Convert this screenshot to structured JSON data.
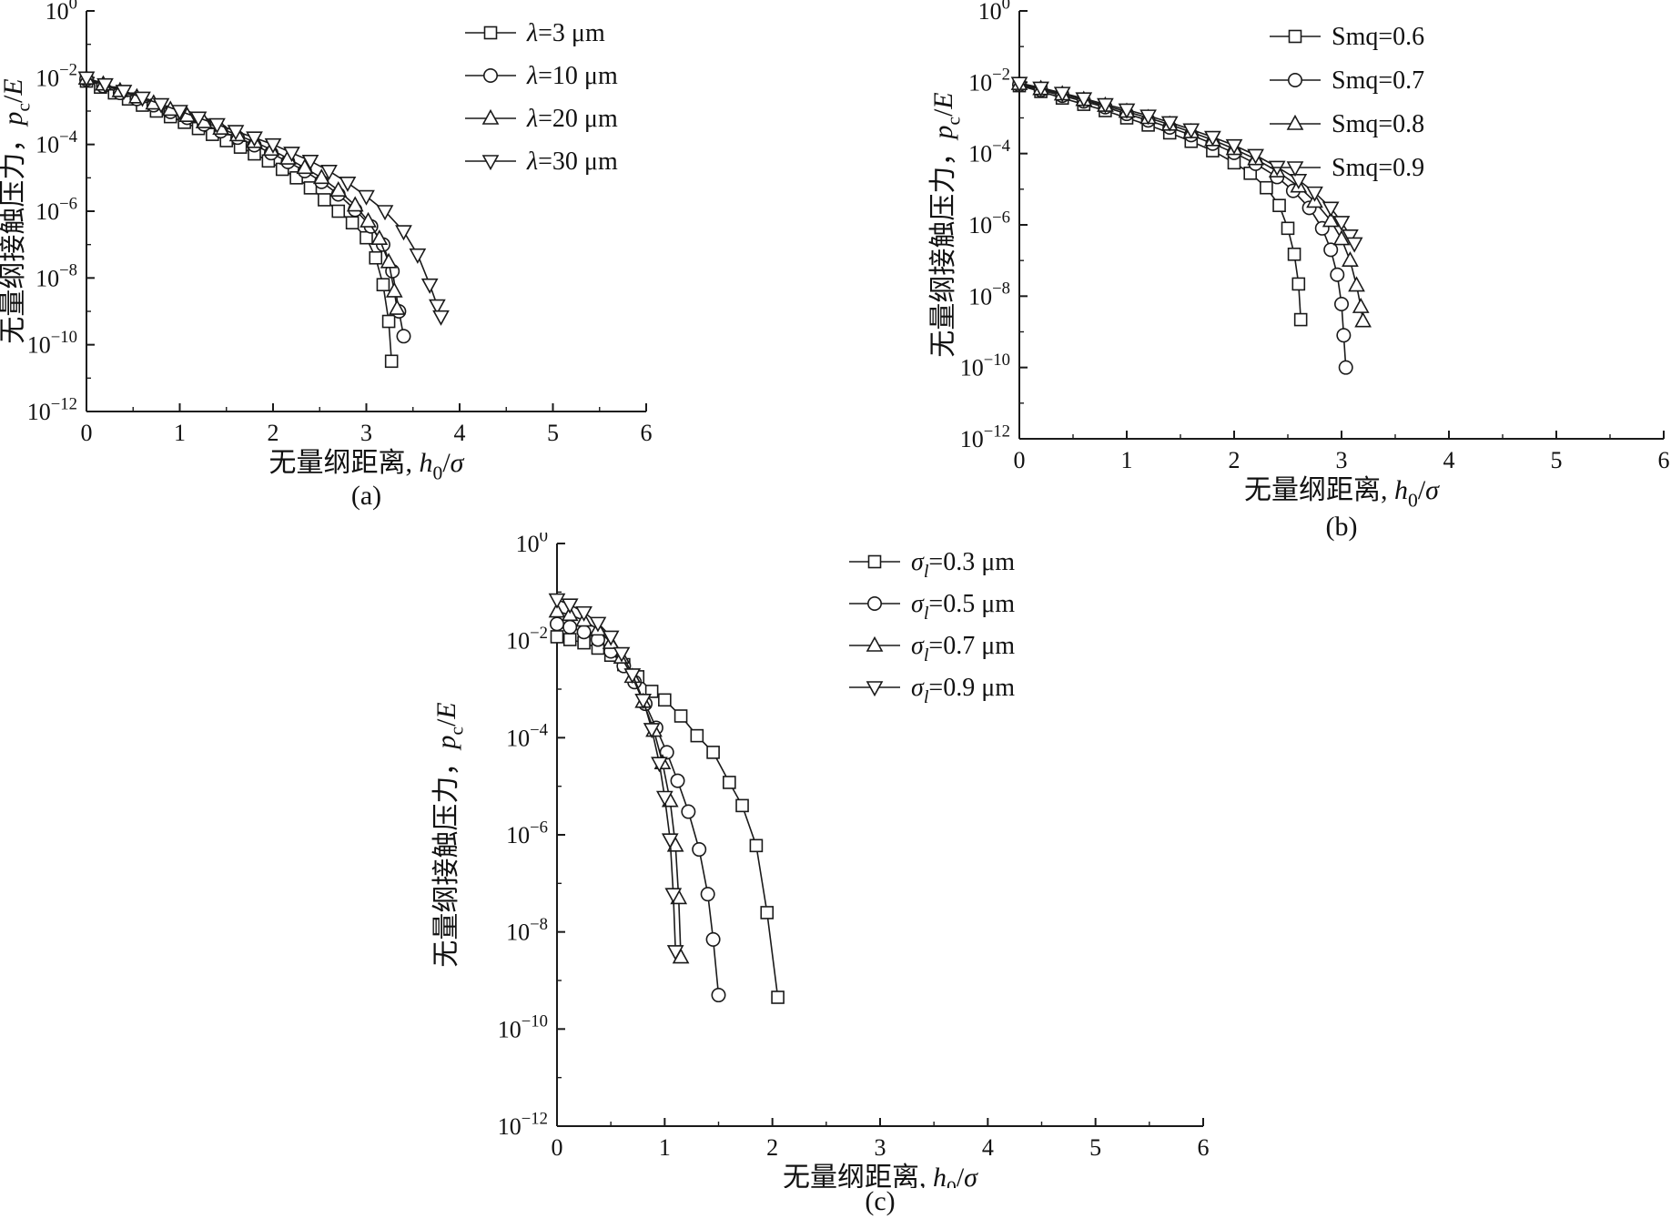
{
  "colors": {
    "stroke": "#1a1a1a",
    "marker_fill": "#ffffff",
    "text": "#111111"
  },
  "chart_data": [
    {
      "id": "a",
      "type": "line",
      "caption": "(a)",
      "xlim": [
        0,
        6
      ],
      "y_exp_range": [
        -12,
        0
      ],
      "xticks": [
        0,
        1,
        2,
        3,
        4,
        5,
        6
      ],
      "ytick_exps": [
        0,
        -2,
        -4,
        -6,
        -8,
        -10,
        -12
      ],
      "grid": false,
      "legend_position": "top-right",
      "xlabel_parts": [
        {
          "t": "无量纲距离, "
        },
        {
          "t": "h",
          "i": true
        },
        {
          "t": "0",
          "sub": true
        },
        {
          "t": "/"
        },
        {
          "t": "σ",
          "i": true
        }
      ],
      "ylabel_parts": [
        {
          "t": "无量纲接触压力，"
        },
        {
          "t": "p",
          "i": true
        },
        {
          "t": "c",
          "sub": true
        },
        {
          "t": "/"
        },
        {
          "t": "E",
          "i": true
        }
      ],
      "series": [
        {
          "label_parts": [
            {
              "t": "λ",
              "i": true
            },
            {
              "t": "=3 μm"
            }
          ],
          "marker": "square",
          "x": [
            0,
            0.15,
            0.3,
            0.45,
            0.6,
            0.75,
            0.9,
            1.05,
            1.2,
            1.35,
            1.5,
            1.65,
            1.8,
            1.95,
            2.1,
            2.25,
            2.4,
            2.55,
            2.7,
            2.85,
            3.0,
            3.1,
            3.18,
            3.24,
            3.27
          ],
          "y": [
            0.0079,
            0.0052,
            0.0035,
            0.0023,
            0.0015,
            0.001,
            0.00068,
            0.00046,
            0.0003,
            0.0002,
            0.00013,
            8.3e-05,
            5.2e-05,
            3.2e-05,
            1.8e-05,
            1e-05,
            5e-06,
            2.2e-06,
            1e-06,
            4.5e-07,
            1.6e-07,
            4e-08,
            6.3e-09,
            5e-10,
            3.2e-11
          ]
        },
        {
          "label_parts": [
            {
              "t": "λ",
              "i": true
            },
            {
              "t": "=10 μm"
            }
          ],
          "marker": "circle",
          "x": [
            0,
            0.18,
            0.36,
            0.54,
            0.72,
            0.9,
            1.08,
            1.26,
            1.44,
            1.62,
            1.8,
            1.98,
            2.16,
            2.34,
            2.52,
            2.7,
            2.88,
            3.05,
            3.18,
            3.28,
            3.35,
            3.4
          ],
          "y": [
            0.0089,
            0.0056,
            0.0035,
            0.0023,
            0.0015,
            0.00095,
            0.00063,
            0.0004,
            0.00025,
            0.00016,
            9.5e-05,
            5.5e-05,
            3e-05,
            1.6e-05,
            7.6e-06,
            3.2e-06,
            1.1e-06,
            3.5e-07,
            1e-07,
            1.6e-08,
            1e-09,
            1.8e-10
          ]
        },
        {
          "label_parts": [
            {
              "t": "λ",
              "i": true
            },
            {
              "t": "=20 μm"
            }
          ],
          "marker": "triangle-up",
          "x": [
            0,
            0.18,
            0.36,
            0.54,
            0.72,
            0.9,
            1.08,
            1.26,
            1.44,
            1.62,
            1.8,
            1.98,
            2.16,
            2.34,
            2.52,
            2.7,
            2.88,
            3.02,
            3.14,
            3.24,
            3.3,
            3.33
          ],
          "y": [
            0.0095,
            0.0063,
            0.004,
            0.0026,
            0.0017,
            0.0011,
            0.00072,
            0.00047,
            0.0003,
            0.00019,
            0.00012,
            7e-05,
            3.8e-05,
            2e-05,
            1e-05,
            4.2e-06,
            1.5e-06,
            5e-07,
            1.5e-07,
            3e-08,
            4e-09,
            1.2e-09
          ]
        },
        {
          "label_parts": [
            {
              "t": "λ",
              "i": true
            },
            {
              "t": "=30 μm"
            }
          ],
          "marker": "triangle-down",
          "x": [
            0,
            0.2,
            0.4,
            0.6,
            0.8,
            1.0,
            1.2,
            1.4,
            1.6,
            1.8,
            2.0,
            2.2,
            2.4,
            2.6,
            2.8,
            3.0,
            3.2,
            3.4,
            3.55,
            3.68,
            3.76,
            3.8
          ],
          "y": [
            0.01,
            0.0063,
            0.004,
            0.0025,
            0.0016,
            0.001,
            0.00063,
            0.0004,
            0.00025,
            0.00016,
            0.0001,
            5.6e-05,
            3.2e-05,
            1.6e-05,
            7.1e-06,
            2.8e-06,
            1e-06,
            2.5e-07,
            5e-08,
            6.3e-09,
            1.5e-09,
            7e-10
          ]
        }
      ]
    },
    {
      "id": "b",
      "type": "line",
      "caption": "(b)",
      "xlim": [
        0,
        6
      ],
      "y_exp_range": [
        -12,
        0
      ],
      "xticks": [
        0,
        1,
        2,
        3,
        4,
        5,
        6
      ],
      "ytick_exps": [
        0,
        -2,
        -4,
        -6,
        -8,
        -10,
        -12
      ],
      "grid": false,
      "legend_position": "top-right",
      "xlabel_parts": [
        {
          "t": "无量纲距离, "
        },
        {
          "t": "h",
          "i": true
        },
        {
          "t": "0",
          "sub": true
        },
        {
          "t": "/"
        },
        {
          "t": "σ",
          "i": true
        }
      ],
      "ylabel_parts": [
        {
          "t": "无量纲接触压力，"
        },
        {
          "t": "p",
          "i": true
        },
        {
          "t": "c",
          "sub": true
        },
        {
          "t": "/"
        },
        {
          "t": "E",
          "i": true
        }
      ],
      "series": [
        {
          "label_parts": [
            {
              "t": "Smq"
            },
            {
              "t": "=0.6"
            }
          ],
          "marker": "square",
          "x": [
            0,
            0.2,
            0.4,
            0.6,
            0.8,
            1.0,
            1.2,
            1.4,
            1.6,
            1.8,
            2.0,
            2.15,
            2.3,
            2.42,
            2.5,
            2.56,
            2.6,
            2.62
          ],
          "y": [
            0.008,
            0.0055,
            0.0036,
            0.0024,
            0.0016,
            0.001,
            0.00063,
            0.00038,
            0.00022,
            0.00012,
            5.5e-05,
            2.8e-05,
            1.1e-05,
            3.5e-06,
            8e-07,
            1.5e-07,
            2.2e-08,
            2.2e-09
          ]
        },
        {
          "label_parts": [
            {
              "t": "Smq"
            },
            {
              "t": "=0.7"
            }
          ],
          "marker": "circle",
          "x": [
            0,
            0.2,
            0.4,
            0.6,
            0.8,
            1.0,
            1.2,
            1.4,
            1.6,
            1.8,
            2.0,
            2.2,
            2.4,
            2.55,
            2.7,
            2.82,
            2.9,
            2.96,
            3.0,
            3.02,
            3.04
          ],
          "y": [
            0.0085,
            0.006,
            0.0042,
            0.0029,
            0.002,
            0.0013,
            0.00085,
            0.00054,
            0.00033,
            0.00019,
            0.000105,
            5.2e-05,
            2.2e-05,
            9e-06,
            3e-06,
            8e-07,
            2e-07,
            4e-08,
            6e-09,
            8e-10,
            1e-10
          ]
        },
        {
          "label_parts": [
            {
              "t": "Smq"
            },
            {
              "t": "=0.8"
            }
          ],
          "marker": "triangle-up",
          "x": [
            0,
            0.2,
            0.4,
            0.6,
            0.8,
            1.0,
            1.2,
            1.4,
            1.6,
            1.8,
            2.0,
            2.2,
            2.4,
            2.6,
            2.75,
            2.9,
            3.0,
            3.08,
            3.14,
            3.18,
            3.2
          ],
          "y": [
            0.009,
            0.0065,
            0.0046,
            0.0032,
            0.0022,
            0.0015,
            0.001,
            0.00065,
            0.0004,
            0.00024,
            0.000135,
            7e-05,
            3.2e-05,
            1.2e-05,
            4.5e-06,
            1.3e-06,
            4e-07,
            1e-07,
            2e-08,
            5e-09,
            2e-09
          ]
        },
        {
          "label_parts": [
            {
              "t": "Smq"
            },
            {
              "t": "=0.9"
            }
          ],
          "marker": "triangle-down",
          "x": [
            0,
            0.2,
            0.4,
            0.6,
            0.8,
            1.0,
            1.2,
            1.4,
            1.6,
            1.8,
            2.0,
            2.2,
            2.4,
            2.6,
            2.75,
            2.9,
            3.0,
            3.08,
            3.12
          ],
          "y": [
            0.0095,
            0.007,
            0.005,
            0.0035,
            0.0024,
            0.0017,
            0.00115,
            0.00075,
            0.00047,
            0.00029,
            0.00017,
            9e-05,
            4.2e-05,
            1.8e-05,
            8e-06,
            3e-06,
            1.2e-06,
            5e-07,
            3e-07
          ]
        }
      ]
    },
    {
      "id": "c",
      "type": "line",
      "caption": "(c)",
      "xlim": [
        0,
        6
      ],
      "y_exp_range": [
        -12,
        0
      ],
      "xticks": [
        0,
        1,
        2,
        3,
        4,
        5,
        6
      ],
      "ytick_exps": [
        0,
        -2,
        -4,
        -6,
        -8,
        -10,
        -12
      ],
      "grid": false,
      "legend_position": "top-right",
      "xlabel_parts": [
        {
          "t": "无量纲距离, "
        },
        {
          "t": "h",
          "i": true
        },
        {
          "t": "0",
          "sub": true
        },
        {
          "t": "/"
        },
        {
          "t": "σ",
          "i": true
        }
      ],
      "ylabel_parts": [
        {
          "t": "无量纲接触压力，"
        },
        {
          "t": "p",
          "i": true
        },
        {
          "t": "c",
          "sub": true
        },
        {
          "t": "/"
        },
        {
          "t": "E",
          "i": true
        }
      ],
      "series": [
        {
          "label_parts": [
            {
              "t": "σ",
              "i": true
            },
            {
              "t": "l",
              "sub": true,
              "i": true
            },
            {
              "t": "=0.3 μm"
            }
          ],
          "marker": "square",
          "x": [
            0,
            0.12,
            0.25,
            0.38,
            0.5,
            0.62,
            0.75,
            0.88,
            1.0,
            1.15,
            1.3,
            1.45,
            1.6,
            1.72,
            1.85,
            1.95,
            2.05
          ],
          "y": [
            0.012,
            0.0105,
            0.009,
            0.007,
            0.005,
            0.0032,
            0.0018,
            0.0009,
            0.0006,
            0.00028,
            0.00011,
            5e-05,
            1.2e-05,
            4e-06,
            6e-07,
            2.5e-08,
            4.5e-10
          ]
        },
        {
          "label_parts": [
            {
              "t": "σ",
              "i": true
            },
            {
              "t": "l",
              "sub": true,
              "i": true
            },
            {
              "t": "=0.5 μm"
            }
          ],
          "marker": "circle",
          "x": [
            0,
            0.12,
            0.25,
            0.38,
            0.5,
            0.62,
            0.72,
            0.82,
            0.92,
            1.02,
            1.12,
            1.22,
            1.32,
            1.4,
            1.45,
            1.5
          ],
          "y": [
            0.022,
            0.019,
            0.015,
            0.0105,
            0.006,
            0.003,
            0.0014,
            0.0005,
            0.00016,
            5e-05,
            1.3e-05,
            3e-06,
            5e-07,
            6e-08,
            7e-09,
            5e-10
          ]
        },
        {
          "label_parts": [
            {
              "t": "σ",
              "i": true
            },
            {
              "t": "l",
              "sub": true,
              "i": true
            },
            {
              "t": "=0.7 μm"
            }
          ],
          "marker": "triangle-up",
          "x": [
            0,
            0.12,
            0.25,
            0.38,
            0.5,
            0.6,
            0.7,
            0.8,
            0.9,
            0.98,
            1.05,
            1.1,
            1.13,
            1.15
          ],
          "y": [
            0.04,
            0.034,
            0.026,
            0.017,
            0.009,
            0.0045,
            0.0018,
            0.00055,
            0.00014,
            3e-05,
            5e-06,
            6e-07,
            5e-08,
            3e-09
          ]
        },
        {
          "label_parts": [
            {
              "t": "σ",
              "i": true
            },
            {
              "t": "l",
              "sub": true,
              "i": true
            },
            {
              "t": "=0.9 μm"
            }
          ],
          "marker": "triangle-down",
          "x": [
            0,
            0.12,
            0.25,
            0.38,
            0.5,
            0.6,
            0.7,
            0.8,
            0.88,
            0.95,
            1.0,
            1.05,
            1.08,
            1.1
          ],
          "y": [
            0.07,
            0.055,
            0.038,
            0.023,
            0.012,
            0.0055,
            0.002,
            0.0006,
            0.00015,
            3e-05,
            6e-06,
            8e-07,
            6e-08,
            4e-09
          ]
        }
      ]
    }
  ]
}
